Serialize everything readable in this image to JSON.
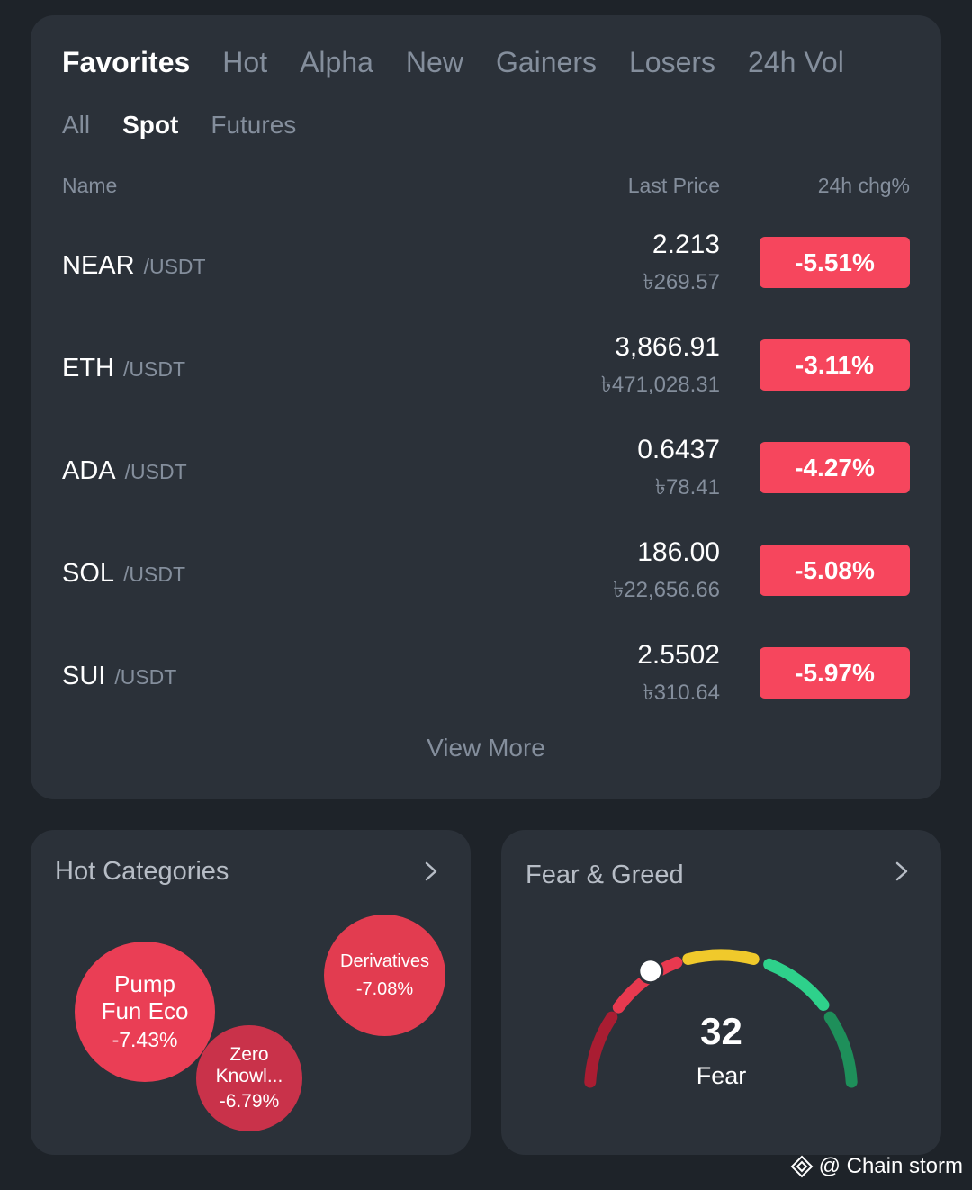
{
  "tabs": [
    "Favorites",
    "Hot",
    "Alpha",
    "New",
    "Gainers",
    "Losers",
    "24h Vol"
  ],
  "subtabs": [
    "All",
    "Spot",
    "Futures"
  ],
  "columns": {
    "name": "Name",
    "price": "Last Price",
    "change": "24h chg%"
  },
  "rows": [
    {
      "base": "NEAR",
      "quote": "/USDT",
      "price": "2.213",
      "fiat": "৳269.57",
      "change": "-5.51%"
    },
    {
      "base": "ETH",
      "quote": "/USDT",
      "price": "3,866.91",
      "fiat": "৳471,028.31",
      "change": "-3.11%"
    },
    {
      "base": "ADA",
      "quote": "/USDT",
      "price": "0.6437",
      "fiat": "৳78.41",
      "change": "-4.27%"
    },
    {
      "base": "SOL",
      "quote": "/USDT",
      "price": "186.00",
      "fiat": "৳22,656.66",
      "change": "-5.08%"
    },
    {
      "base": "SUI",
      "quote": "/USDT",
      "price": "2.5502",
      "fiat": "৳310.64",
      "change": "-5.97%"
    }
  ],
  "view_more": "View More",
  "hot_categories": {
    "title": "Hot Categories",
    "items": [
      {
        "name": "Pump Fun Eco",
        "change": "-7.43%"
      },
      {
        "name": "Derivatives",
        "change": "-7.08%"
      },
      {
        "name": "Zero Knowl...",
        "change": "-6.79%"
      }
    ]
  },
  "fear_greed": {
    "title": "Fear & Greed",
    "value": "32",
    "label": "Fear",
    "level": 32
  },
  "watermark": "@ Chain storm",
  "colors": {
    "background": "#1e2329",
    "card": "#2b3139",
    "negative": "#f6465d",
    "muted": "#848e9c"
  }
}
